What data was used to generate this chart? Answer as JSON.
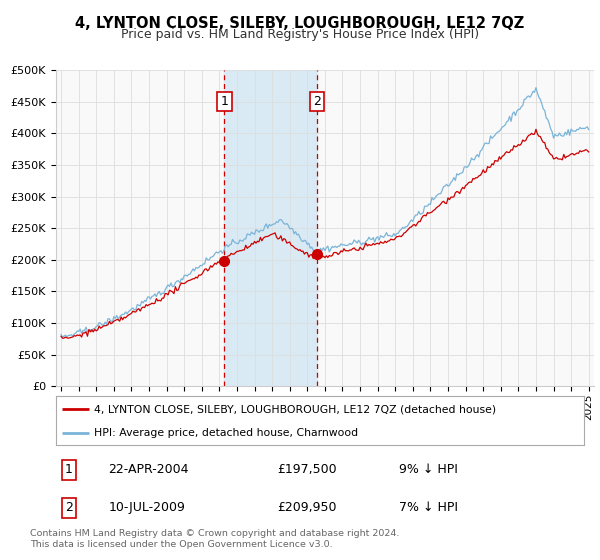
{
  "title": "4, LYNTON CLOSE, SILEBY, LOUGHBOROUGH, LE12 7QZ",
  "subtitle": "Price paid vs. HM Land Registry's House Price Index (HPI)",
  "ylim": [
    0,
    500000
  ],
  "yticks": [
    0,
    50000,
    100000,
    150000,
    200000,
    250000,
    300000,
    350000,
    400000,
    450000,
    500000
  ],
  "ytick_labels": [
    "£0",
    "£50K",
    "£100K",
    "£150K",
    "£200K",
    "£250K",
    "£300K",
    "£350K",
    "£400K",
    "£450K",
    "£500K"
  ],
  "xtick_years": [
    1995,
    1996,
    1997,
    1998,
    1999,
    2000,
    2001,
    2002,
    2003,
    2004,
    2005,
    2006,
    2007,
    2008,
    2009,
    2010,
    2011,
    2012,
    2013,
    2014,
    2015,
    2016,
    2017,
    2018,
    2019,
    2020,
    2021,
    2022,
    2023,
    2024,
    2025
  ],
  "hpi_color": "#7ab4d8",
  "price_color": "#cc0000",
  "sale1_date": 2004.29,
  "sale1_price": 197500,
  "sale2_date": 2009.54,
  "sale2_price": 209950,
  "legend_line1": "4, LYNTON CLOSE, SILEBY, LOUGHBOROUGH, LE12 7QZ (detached house)",
  "legend_line2": "HPI: Average price, detached house, Charnwood",
  "table_row1_num": "1",
  "table_row1_date": "22-APR-2004",
  "table_row1_price": "£197,500",
  "table_row1_hpi": "9% ↓ HPI",
  "table_row2_num": "2",
  "table_row2_date": "10-JUL-2009",
  "table_row2_price": "£209,950",
  "table_row2_hpi": "7% ↓ HPI",
  "footnote": "Contains HM Land Registry data © Crown copyright and database right 2024.\nThis data is licensed under the Open Government Licence v3.0.",
  "bg_color": "#ffffff",
  "plot_bg_color": "#f9f9f9",
  "grid_color": "#dddddd",
  "shade_color": "#daeaf5",
  "number_box_color": "#cc0000"
}
